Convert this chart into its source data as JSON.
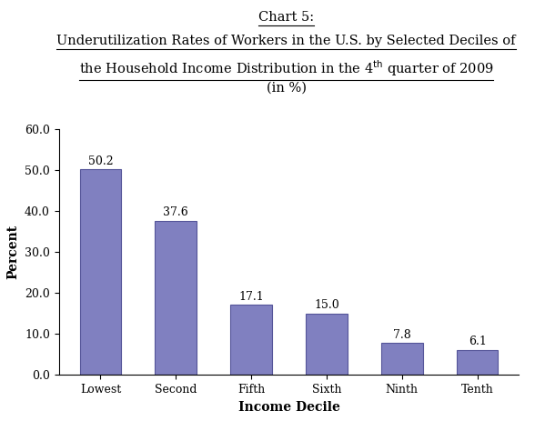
{
  "categories": [
    "Lowest",
    "Second",
    "Fifth",
    "Sixth",
    "Ninth",
    "Tenth"
  ],
  "values": [
    50.2,
    37.6,
    17.1,
    15.0,
    7.8,
    6.1
  ],
  "bar_color": "#8080c0",
  "bar_edgecolor": "#555599",
  "title_line1": "Chart 5:",
  "title_line2": "Underutilization Rates of Workers in the U.S. by Selected Deciles of",
  "title_line3_pre": "the Household Income Distribution in the 4",
  "title_line3_super": "th",
  "title_line3_post": " quarter of 2009",
  "title_line4": "(in %)",
  "xlabel": "Income Decile",
  "ylabel": "Percent",
  "ylim": [
    0,
    60
  ],
  "yticks": [
    0.0,
    10.0,
    20.0,
    30.0,
    40.0,
    50.0,
    60.0
  ],
  "background_color": "#ffffff",
  "title_fontsize": 10.5,
  "axis_label_fontsize": 10,
  "tick_fontsize": 9,
  "bar_label_fontsize": 9
}
